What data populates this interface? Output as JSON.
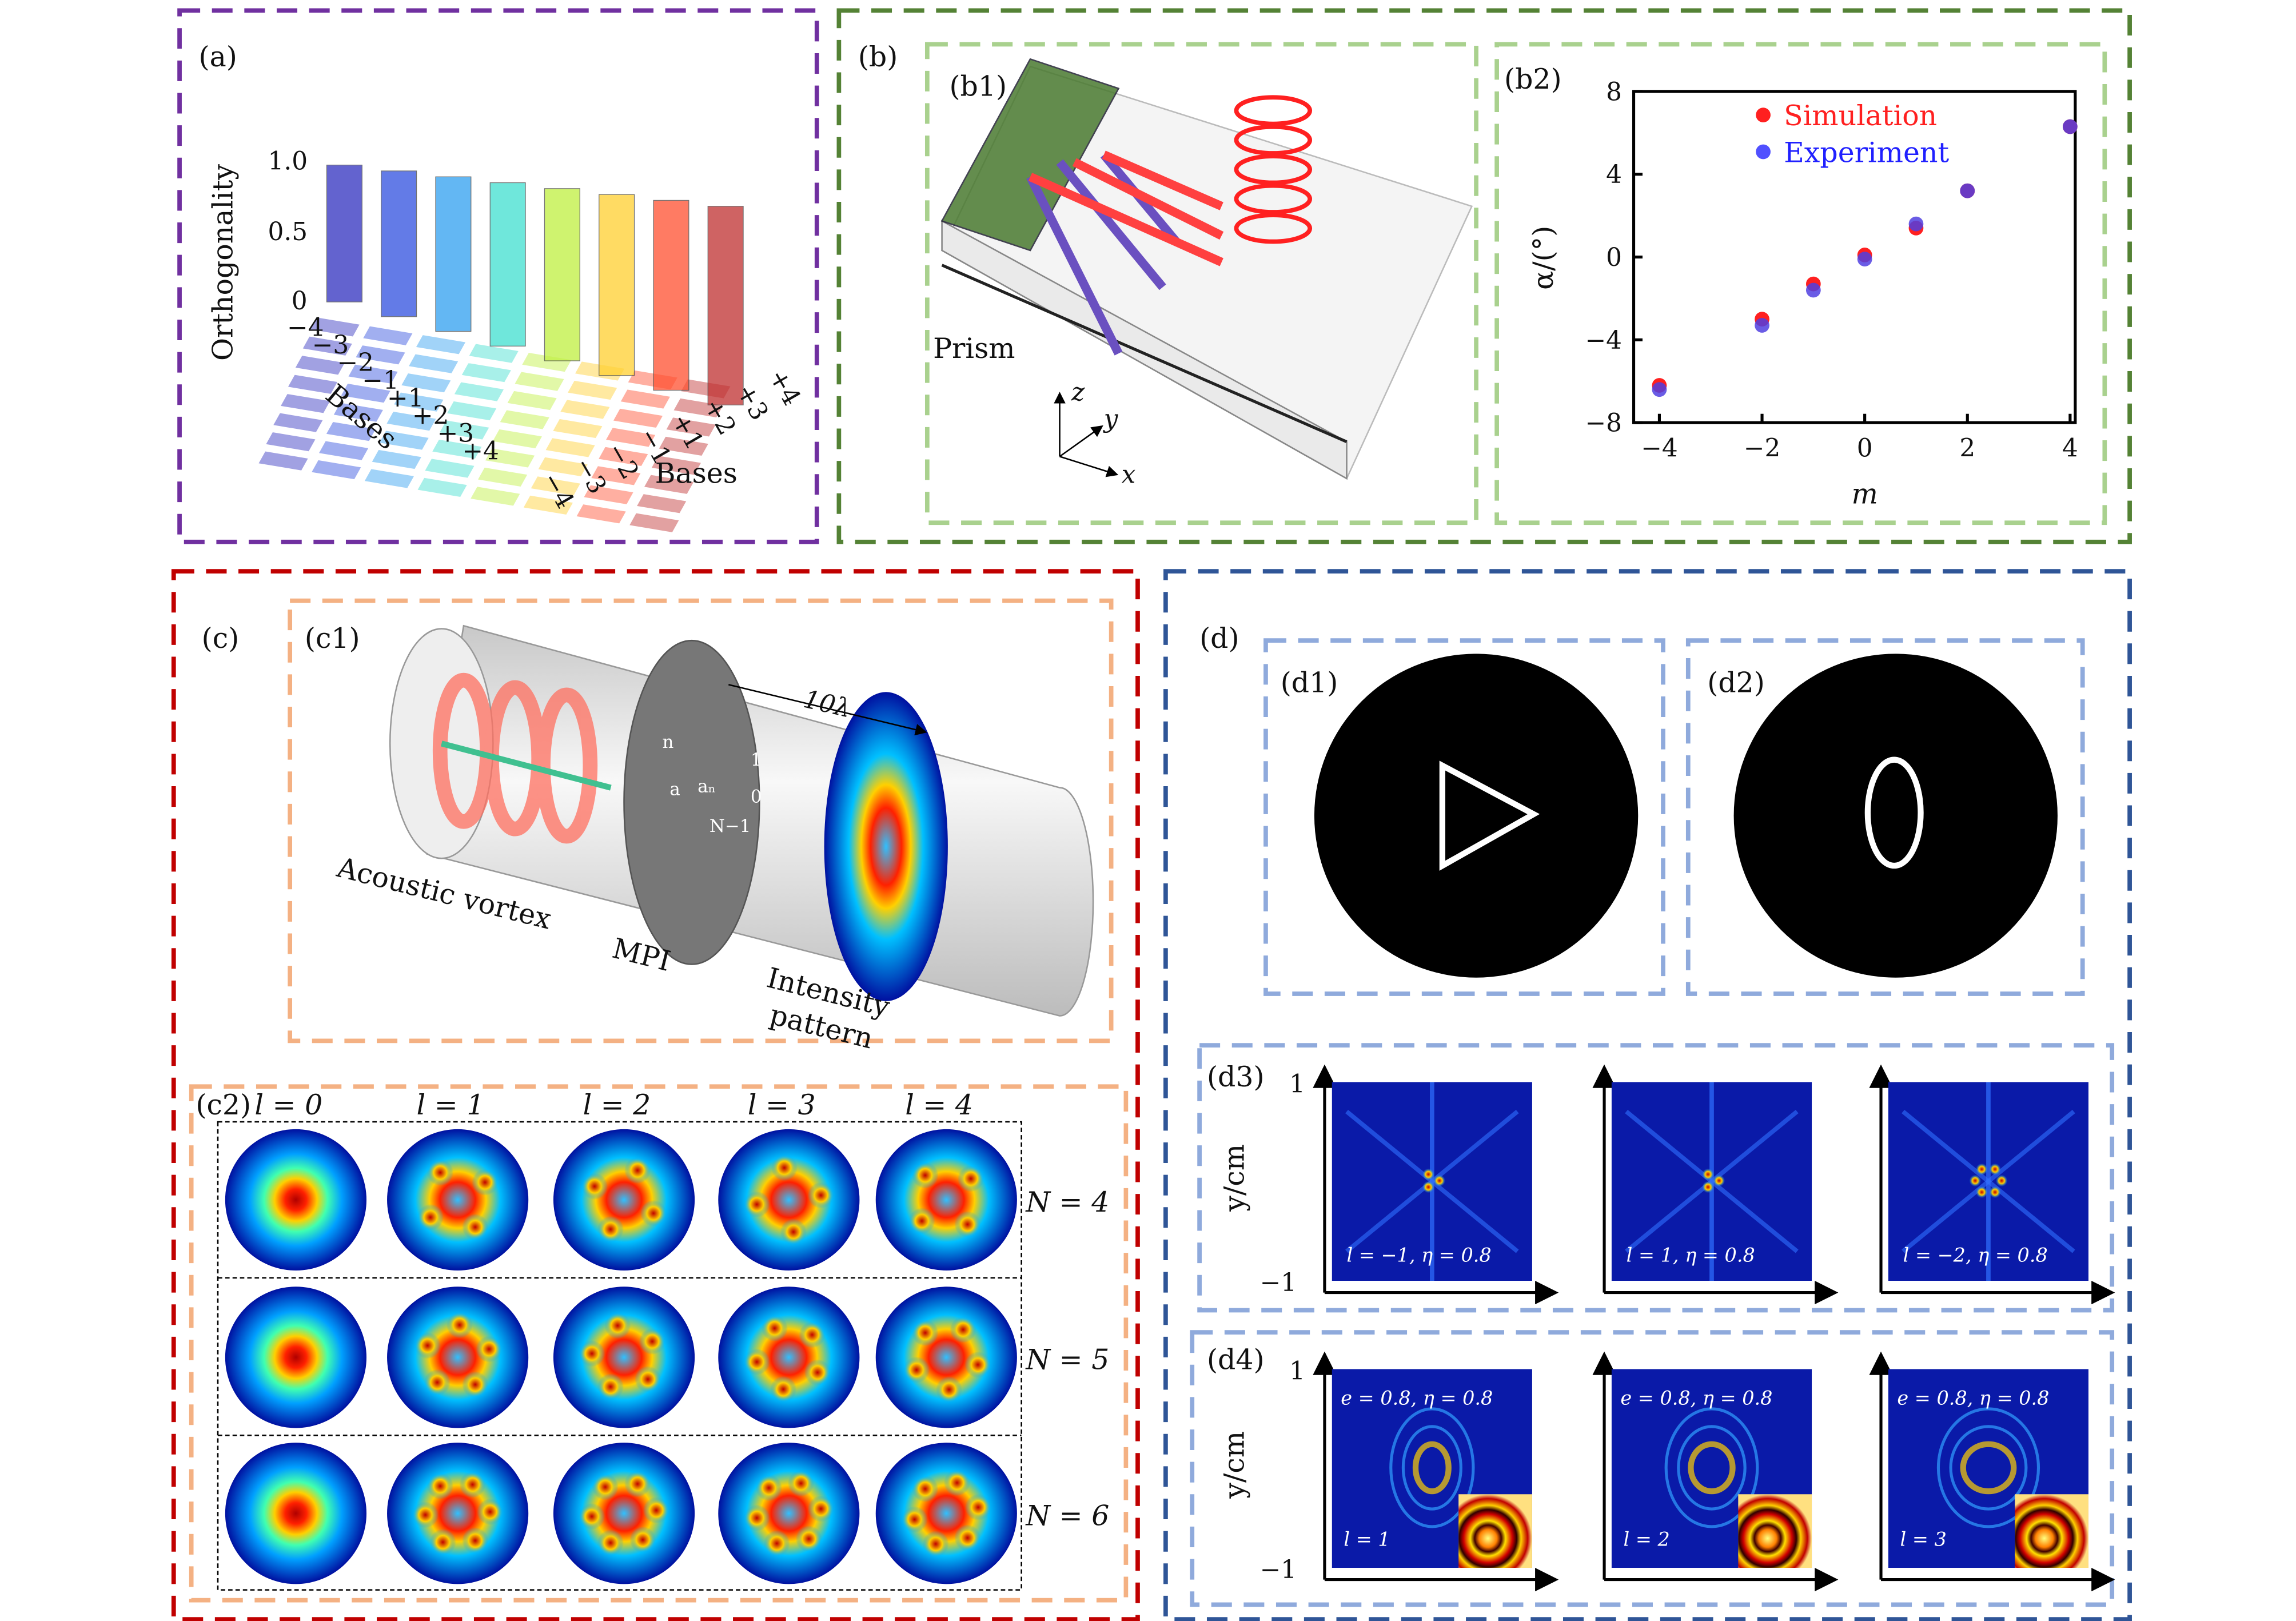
{
  "colors": {
    "a": "#7030a0",
    "b": "#548235",
    "b_inner": "#a9d18e",
    "c": "#c00000",
    "c_inner": "#f4b183",
    "d": "#2f5597",
    "d_inner": "#8faadc",
    "simulation": "#ff2020",
    "experiment": "#3030ff"
  },
  "panel_a": {
    "label": "(a)",
    "zlabel": "Orthogonality",
    "z_ticks": [
      "1.0",
      "0.5",
      "0"
    ],
    "left_axis_label": "Bases",
    "right_axis_label": "Bases",
    "left_ticks": [
      "−4",
      "−3",
      "−2",
      "−1",
      "+1",
      "+2",
      "+3",
      "+4"
    ],
    "right_ticks": [
      "−4",
      "−3",
      "−2",
      "−1",
      "+1",
      "+2",
      "+3",
      "+4"
    ]
  },
  "panel_b": {
    "label": "(b)",
    "b1": {
      "label": "(b1)",
      "prism": "Prism",
      "axes": [
        "z",
        "y",
        "x"
      ]
    },
    "b2": {
      "label": "(b2)"
    }
  },
  "chart_data": {
    "type": "scatter",
    "xlabel": "m",
    "ylabel": "α/(°)",
    "xlim": [
      -4.5,
      4.1
    ],
    "ylim": [
      -8,
      8
    ],
    "x_ticks": [
      "−4",
      "−2",
      "0",
      "2",
      "4"
    ],
    "y_ticks": [
      "8",
      "4",
      "0",
      "−4",
      "−8"
    ],
    "legend": "top-center",
    "series": [
      {
        "name": "Simulation",
        "x": [
          -4,
          -2,
          -1,
          0,
          1,
          2,
          4
        ],
        "y": [
          -6.2,
          -3.0,
          -1.3,
          0.1,
          1.4,
          3.2,
          6.3
        ]
      },
      {
        "name": "Experiment",
        "x": [
          -4,
          -2,
          -1,
          0,
          1,
          2,
          4
        ],
        "y": [
          -6.4,
          -3.3,
          -1.6,
          -0.1,
          1.6,
          3.2,
          6.3
        ]
      }
    ]
  },
  "panel_c": {
    "label": "(c)",
    "c1": {
      "label": "(c1)",
      "dimension": "10λ",
      "vortex": "Acoustic vortex",
      "mpi": "MPI",
      "intensity": "Intensity",
      "pattern": "pattern",
      "ring_labels": [
        "n",
        "a",
        "aₙ",
        "1",
        "0",
        "N−1"
      ]
    },
    "c2": {
      "label": "(c2)",
      "columns": [
        "l = 0",
        "l = 1",
        "l = 2",
        "l = 3",
        "l = 4"
      ],
      "rows": [
        "N = 4",
        "N = 5",
        "N = 6"
      ]
    }
  },
  "panel_d": {
    "label": "(d)",
    "d1": {
      "label": "(d1)"
    },
    "d2": {
      "label": "(d2)"
    },
    "d3": {
      "label": "(d3)",
      "ylabel": "y/cm",
      "y_ticks": [
        "1",
        "−1"
      ],
      "captions": [
        "l = −1, η = 0.8",
        "l = 1, η = 0.8",
        "l = −2, η = 0.8"
      ]
    },
    "d4": {
      "label": "(d4)",
      "ylabel": "y/cm",
      "y_ticks": [
        "1",
        "−1"
      ],
      "top_captions": [
        "e = 0.8, η = 0.8",
        "e = 0.8, η = 0.8",
        "e = 0.8, η = 0.8"
      ],
      "captions": [
        "l = 1",
        "l = 2",
        "l = 3"
      ]
    }
  }
}
